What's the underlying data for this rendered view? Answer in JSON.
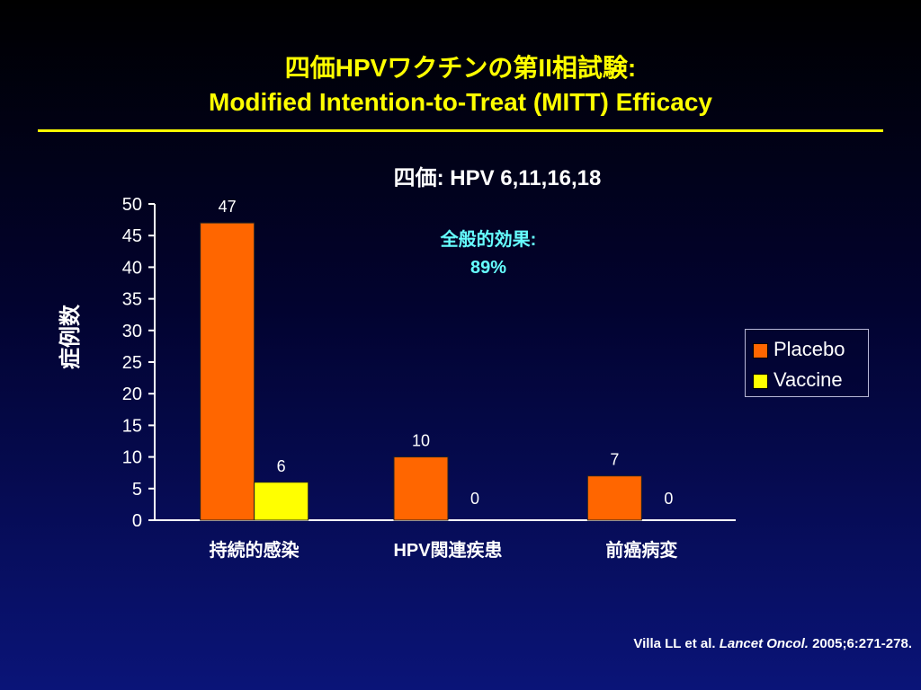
{
  "slide": {
    "title_line1": "四価HPVワクチンの第II相試験:",
    "title_line2": "Modified Intention-to-Treat (MITT) Efficacy",
    "citation_authors": "Villa LL et al.",
    "citation_journal": "Lancet Oncol.",
    "citation_details": "2005;6:271-278."
  },
  "chart_data": {
    "type": "bar",
    "title": "四価:  HPV 6,11,16,18",
    "ylabel": "症例数",
    "xlabel": "",
    "ylim": [
      0,
      50
    ],
    "yticks": [
      0,
      5,
      10,
      15,
      20,
      25,
      30,
      35,
      40,
      45,
      50
    ],
    "categories": [
      "持続的感染",
      "HPV関連疾患",
      "前癌病変"
    ],
    "series": [
      {
        "name": "Placebo",
        "color": "#ff6600",
        "values": [
          47,
          10,
          7
        ]
      },
      {
        "name": "Vaccine",
        "color": "#ffff00",
        "values": [
          6,
          0,
          0
        ]
      }
    ],
    "annotation_label": "全般的効果:",
    "annotation_value": "89%",
    "annotation_color": "#66ffff",
    "legend_position": "right"
  }
}
